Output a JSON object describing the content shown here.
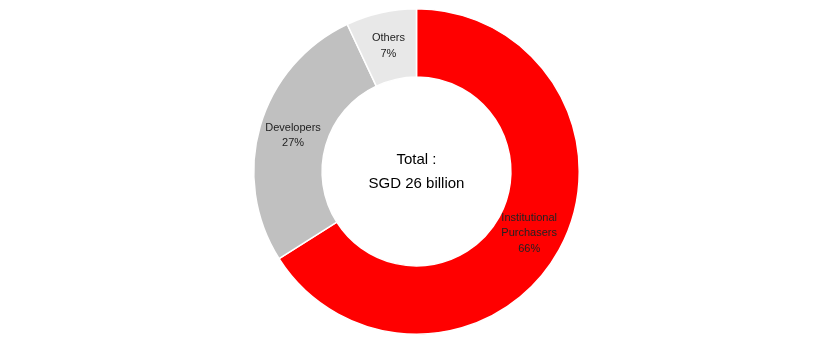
{
  "chart_data": {
    "type": "doughnut",
    "categories": [
      "Institutional\nPurchasers",
      "Developers",
      "Others"
    ],
    "values": [
      66,
      27,
      7
    ],
    "value_labels": [
      "66%",
      "27%",
      "7%"
    ],
    "data_labels": true,
    "colors": [
      "#FF0000",
      "#C0C0C0",
      "#E8E8E8"
    ],
    "annotations": [
      "Total :",
      "SGD 26 billion"
    ],
    "legend": false
  }
}
